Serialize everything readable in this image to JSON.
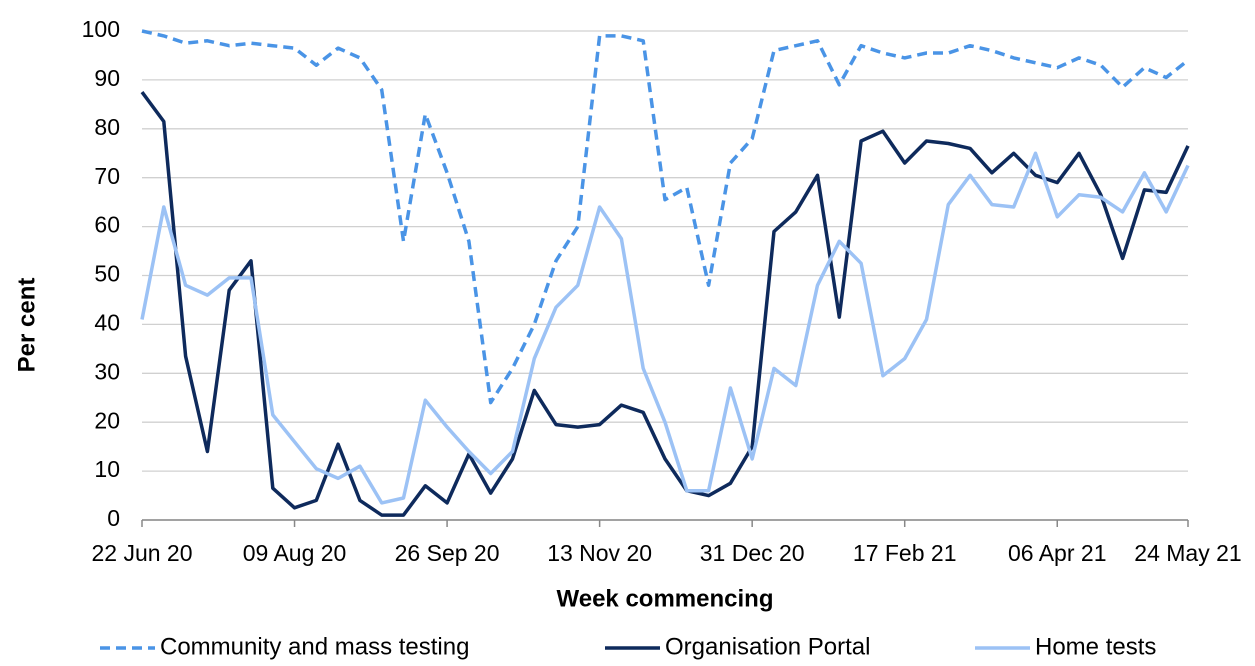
{
  "chart_data": {
    "type": "line",
    "x_label": "Week commencing",
    "y_label": "Per cent",
    "categories": [
      "22 Jun 20",
      null,
      null,
      null,
      null,
      null,
      null,
      "09 Aug 20",
      null,
      null,
      null,
      null,
      null,
      null,
      "26 Sep 20",
      null,
      null,
      null,
      null,
      null,
      null,
      "13 Nov 20",
      null,
      null,
      null,
      null,
      null,
      null,
      "31 Dec 20",
      null,
      null,
      null,
      null,
      null,
      null,
      "17 Feb 21",
      null,
      null,
      null,
      null,
      null,
      null,
      "06 Apr 21",
      null,
      null,
      null,
      null,
      null,
      "24 May 21"
    ],
    "series": [
      {
        "name": "Community and mass testing",
        "color": "#4a94e6",
        "dashed": true,
        "values": [
          100,
          99,
          97.5,
          98,
          97,
          97.5,
          97,
          96.5,
          93,
          96.5,
          94.5,
          88,
          57,
          83,
          71,
          57,
          24,
          31,
          40,
          53,
          60,
          99,
          99,
          98,
          65.5,
          68,
          48,
          73,
          78,
          96,
          97,
          98,
          89,
          97,
          95.5,
          94.5,
          95.5,
          95.5,
          97,
          96,
          94.5,
          93.5,
          92.5,
          94.5,
          93,
          88.5,
          92.5,
          90.5,
          94
        ]
      },
      {
        "name": "Organisation Portal",
        "color": "#0e2a5c",
        "dashed": false,
        "values": [
          87.5,
          81.5,
          33.5,
          14,
          47,
          53,
          6.5,
          2.5,
          4,
          15.5,
          4,
          1,
          1,
          7,
          3.5,
          13.5,
          5.5,
          12.5,
          26.5,
          19.5,
          19,
          19.5,
          23.5,
          22,
          12.5,
          6,
          5,
          7.5,
          15,
          59,
          63,
          70.5,
          41.5,
          77.5,
          79.5,
          73,
          77.5,
          77,
          76,
          71,
          75,
          70.5,
          69,
          75,
          66.5,
          53.5,
          67.5,
          67,
          76.5
        ]
      },
      {
        "name": "Home tests",
        "color": "#9cc2f5",
        "dashed": false,
        "values": [
          41,
          64,
          48,
          46,
          49.5,
          49.5,
          21.5,
          16,
          10.5,
          8.5,
          11,
          3.5,
          4.5,
          24.5,
          19,
          14,
          9.5,
          14,
          33,
          43.5,
          48,
          64,
          57.5,
          31,
          20,
          6,
          6,
          27,
          12.5,
          31,
          27.5,
          48,
          57,
          52.5,
          29.5,
          33,
          41,
          64.5,
          70.5,
          64.5,
          64,
          75,
          62,
          66.5,
          66,
          63,
          71,
          63,
          72.5
        ]
      }
    ],
    "ylim": [
      0,
      100
    ],
    "yticks": [
      0,
      10,
      20,
      30,
      40,
      50,
      60,
      70,
      80,
      90,
      100
    ],
    "grid": true,
    "legend": "bottom"
  }
}
